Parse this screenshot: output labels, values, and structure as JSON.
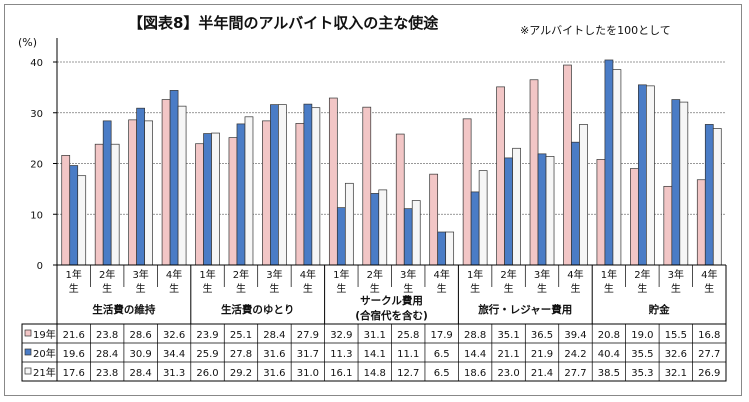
{
  "chart_data": {
    "type": "bar",
    "title": "【図表8】半年間のアルバイト収入の主な使途",
    "note": "※アルバイトしたを100として",
    "ylabel": "(%)",
    "ylim": [
      0,
      40
    ],
    "yticks": [
      0,
      10,
      20,
      30,
      40
    ],
    "grid": true,
    "groups": [
      "生活費の維持",
      "生活費のゆとり",
      "サークル費用\n(合宿代を含む)",
      "旅行・レジャー費用",
      "貯金"
    ],
    "subcategories": [
      "1年\n生",
      "2年\n生",
      "3年\n生",
      "4年\n生"
    ],
    "series": [
      {
        "name": "19年",
        "color": "#f2c6c6",
        "values": [
          21.6,
          23.8,
          28.6,
          32.6,
          23.9,
          25.1,
          28.4,
          27.9,
          32.9,
          31.1,
          25.8,
          17.9,
          28.8,
          35.1,
          36.5,
          39.4,
          20.8,
          19.0,
          15.5,
          16.8
        ]
      },
      {
        "name": "20年",
        "color": "#4a7cc6",
        "values": [
          19.6,
          28.4,
          30.9,
          34.4,
          25.9,
          27.8,
          31.6,
          31.7,
          11.3,
          14.1,
          11.1,
          6.5,
          14.4,
          21.1,
          21.9,
          24.2,
          40.4,
          35.5,
          32.6,
          27.7
        ]
      },
      {
        "name": "21年",
        "color": "#f6f6f6",
        "values": [
          17.6,
          23.8,
          28.4,
          31.3,
          26.0,
          29.2,
          31.6,
          31.0,
          16.1,
          14.8,
          12.7,
          6.5,
          18.6,
          23.0,
          21.4,
          27.7,
          38.5,
          35.3,
          32.1,
          26.9
        ]
      }
    ]
  }
}
